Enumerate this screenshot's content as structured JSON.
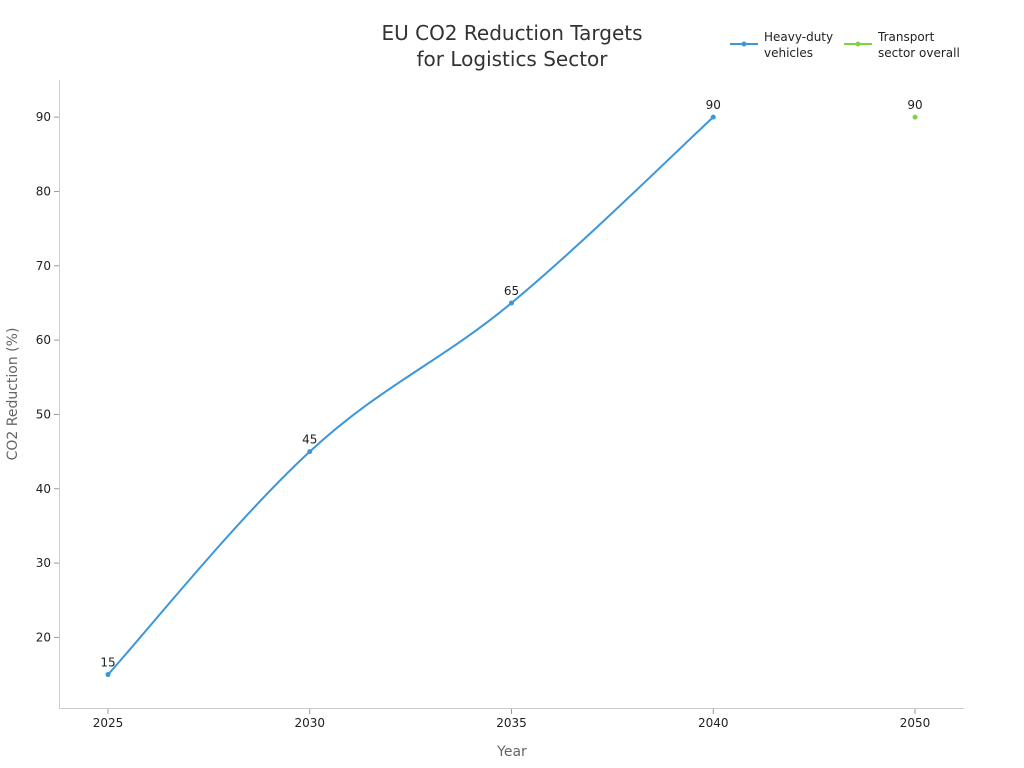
{
  "chart_data": {
    "type": "line",
    "title_lines": [
      "EU CO2 Reduction Targets",
      "for Logistics Sector"
    ],
    "xlabel": "Year",
    "ylabel": "CO2 Reduction (%)",
    "categories": [
      "2025",
      "2030",
      "2035",
      "2040",
      "2050"
    ],
    "yticks": [
      20,
      30,
      40,
      50,
      60,
      70,
      80,
      90
    ],
    "ylim": [
      10.5,
      95
    ],
    "grid": false,
    "legend_position": "top-right",
    "series": [
      {
        "name_lines": [
          "Heavy-duty",
          "vehicles"
        ],
        "color": "#3a96dd",
        "values": [
          15,
          45,
          65,
          90,
          null
        ],
        "data_labels": [
          "15",
          "45",
          "65",
          "90",
          null
        ]
      },
      {
        "name_lines": [
          "Transport",
          "sector overall"
        ],
        "color": "#7ed43c",
        "values": [
          null,
          null,
          null,
          null,
          90
        ],
        "data_labels": [
          null,
          null,
          null,
          null,
          "90"
        ]
      }
    ]
  }
}
